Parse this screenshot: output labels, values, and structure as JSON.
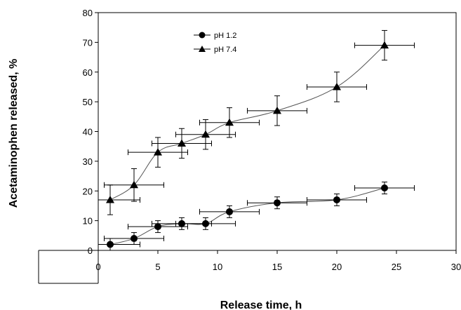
{
  "chart_data": {
    "type": "line",
    "xlabel": "Release time, h",
    "ylabel": "Acetaminophen released, %",
    "xlim": [
      0,
      30
    ],
    "ylim": [
      0,
      80
    ],
    "xticks": [
      "0",
      "5",
      "10",
      "15",
      "20",
      "25",
      "30"
    ],
    "yticks": [
      "0",
      "10",
      "20",
      "30",
      "40",
      "50",
      "60",
      "70",
      "80"
    ],
    "grid": false,
    "legend_position": "top-left",
    "series": [
      {
        "name": "pH 1.2",
        "marker": "circle",
        "color": "#000000",
        "x": [
          1,
          3,
          5,
          7,
          9,
          11,
          15,
          20,
          24
        ],
        "y": [
          2,
          4,
          8,
          9,
          9,
          13,
          16,
          17,
          21
        ],
        "y_err": [
          2,
          2,
          2,
          2,
          2,
          2,
          2,
          2,
          2
        ],
        "x_err": [
          2.5,
          2.5,
          2.5,
          2.5,
          2.5,
          2.5,
          2.5,
          2.5,
          2.5
        ]
      },
      {
        "name": "pH 7.4",
        "marker": "triangle",
        "color": "#000000",
        "x": [
          1,
          3,
          5,
          7,
          9,
          11,
          15,
          20,
          24
        ],
        "y": [
          17,
          22,
          33,
          36,
          39,
          43,
          47,
          55,
          69
        ],
        "y_err": [
          5,
          5.5,
          5,
          5,
          5,
          5,
          5,
          5,
          5
        ],
        "x_err": [
          2.5,
          2.5,
          2.5,
          2.5,
          2.5,
          2.5,
          2.5,
          2.5,
          2.5
        ]
      }
    ]
  }
}
